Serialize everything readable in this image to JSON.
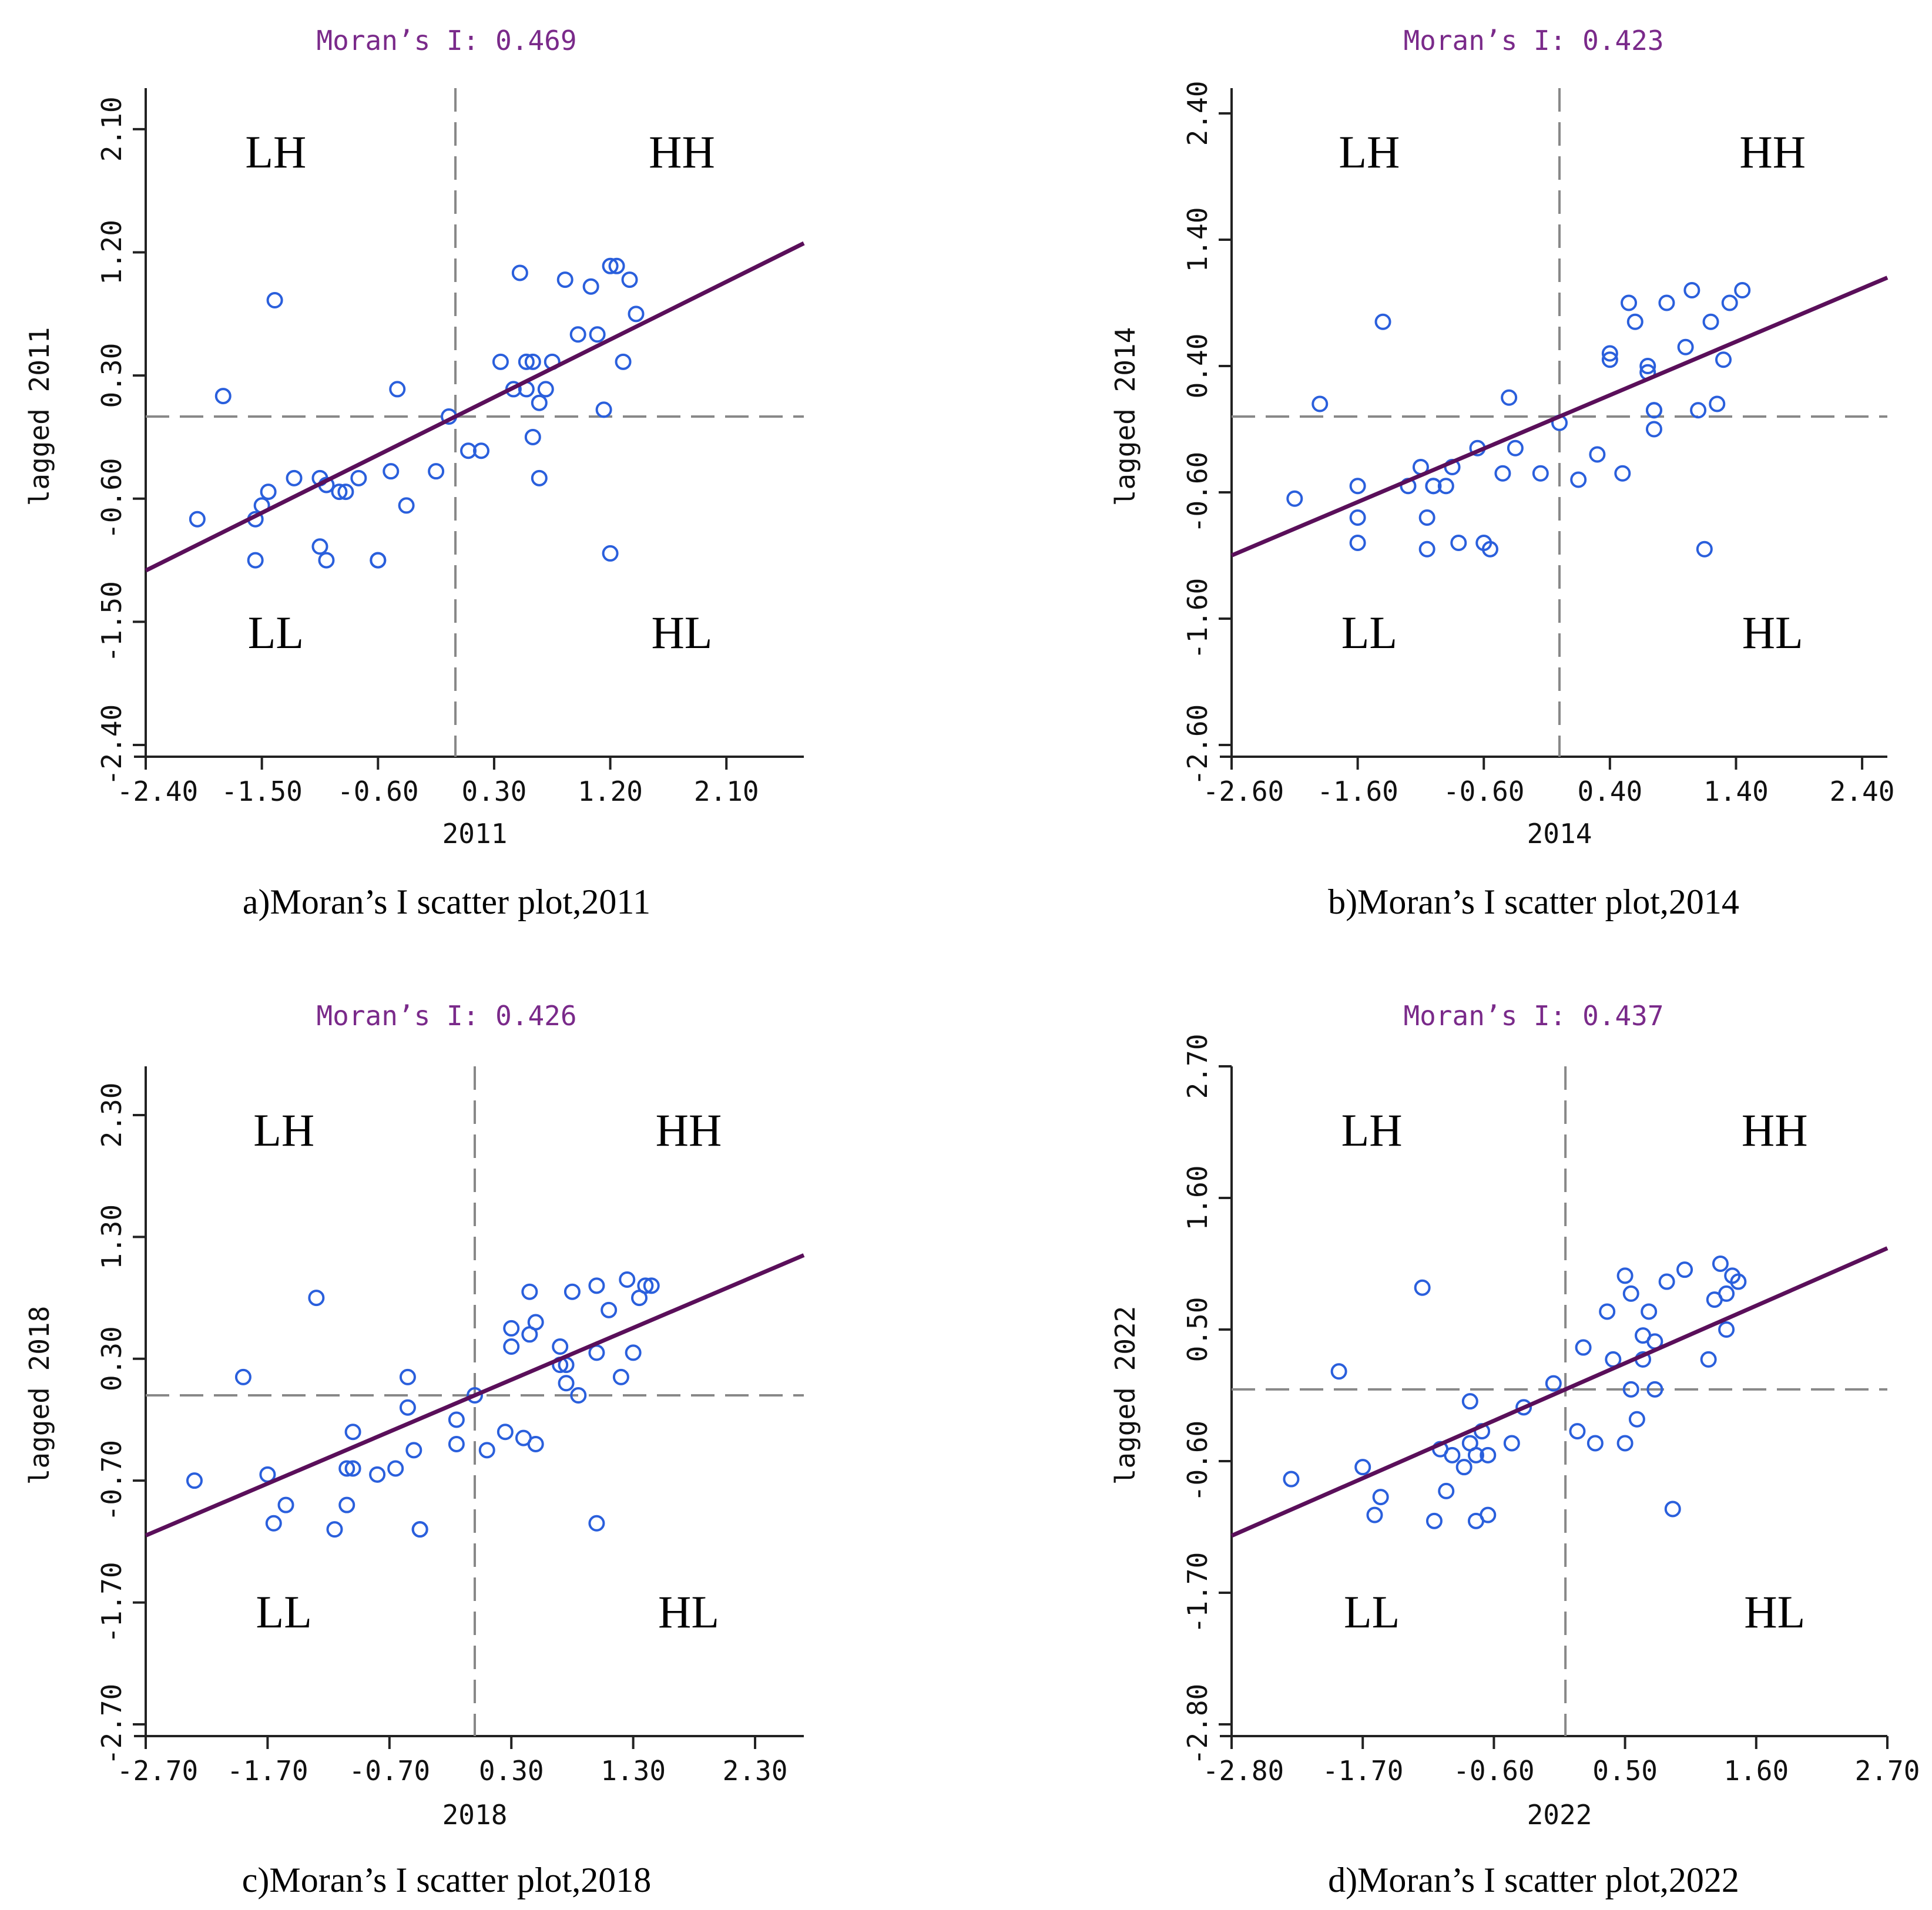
{
  "colors": {
    "regression": "#5a0f5a",
    "points": "#2a5fdc",
    "axes": "#222222",
    "reference": "#888888",
    "moran_title": "#7a2a8a"
  },
  "chart_data": [
    {
      "type": "scatter",
      "title": "Moran’s I: 0.469",
      "xlabel": "2011",
      "ylabel": "lagged 2011",
      "caption": "a)Moran’s I scatter plot,2011",
      "xlim": [
        -2.4,
        2.7
      ],
      "ylim": [
        -2.4,
        2.4
      ],
      "xticks": [
        -2.4,
        -1.5,
        -0.6,
        0.3,
        1.2,
        2.1
      ],
      "xtick_labels": [
        "-2.40",
        "-1.50",
        "-0.60",
        "0.30",
        "1.20",
        "2.10"
      ],
      "yticks": [
        -2.4,
        -1.5,
        -0.6,
        0.3,
        1.2,
        2.1
      ],
      "ytick_labels": [
        "-2.40",
        "-1.50",
        "-0.60",
        "0.30",
        "1.20",
        "2.10"
      ],
      "quadrants": [
        "LH",
        "HH",
        "LL",
        "HL"
      ],
      "moran_i": 0.469,
      "regression_slope": 0.469,
      "x": [
        -2.0,
        -1.55,
        -1.55,
        -1.5,
        -1.45,
        -1.4,
        -1.25,
        -1.05,
        -1.05,
        -1.0,
        -1.0,
        -0.9,
        -0.85,
        -0.75,
        -0.6,
        -0.6,
        -0.5,
        -0.45,
        -0.38,
        -0.15,
        -0.05,
        0.1,
        0.2,
        0.35,
        0.45,
        0.5,
        0.55,
        0.55,
        0.6,
        0.6,
        0.65,
        0.65,
        0.7,
        0.75,
        0.85,
        0.95,
        1.05,
        1.1,
        1.15,
        1.2,
        1.2,
        1.25,
        1.3,
        1.35,
        1.4,
        -1.8
      ],
      "y": [
        -0.75,
        -0.75,
        -1.05,
        -0.65,
        -0.55,
        0.85,
        -0.45,
        -0.45,
        -0.95,
        -1.05,
        -0.5,
        -0.55,
        -0.55,
        -0.45,
        -1.05,
        -1.05,
        -0.4,
        0.2,
        -0.65,
        -0.4,
        0.0,
        -0.25,
        -0.25,
        0.4,
        0.2,
        1.05,
        0.2,
        0.4,
        -0.15,
        0.4,
        0.1,
        -0.45,
        0.2,
        0.4,
        1.0,
        0.6,
        0.95,
        0.6,
        0.05,
        1.1,
        -1.0,
        1.1,
        0.4,
        1.0,
        0.75,
        0.15
      ],
      "points_extra": []
    },
    {
      "type": "scatter",
      "title": "Moran’s I: 0.423",
      "xlabel": "2014",
      "ylabel": "lagged 2014",
      "caption": "b)Moran’s I scatter plot,2014",
      "xlim": [
        -2.6,
        2.6
      ],
      "ylim": [
        -2.6,
        2.6
      ],
      "xticks": [
        -2.6,
        -1.6,
        -0.6,
        0.4,
        1.4,
        2.4
      ],
      "xtick_labels": [
        "-2.60",
        "-1.60",
        "-0.60",
        "0.40",
        "1.40",
        "2.40"
      ],
      "yticks": [
        -2.6,
        -1.6,
        -0.6,
        0.4,
        1.4,
        2.4
      ],
      "ytick_labels": [
        "-2.60",
        "-1.60",
        "-0.60",
        "0.40",
        "1.40",
        "2.40"
      ],
      "quadrants": [
        "LH",
        "HH",
        "LL",
        "HL"
      ],
      "moran_i": 0.423,
      "regression_slope": 0.423,
      "x": [
        -2.1,
        -1.9,
        -1.6,
        -1.6,
        -1.6,
        -1.4,
        -1.2,
        -1.1,
        -1.05,
        -1.05,
        -1.0,
        -1.0,
        -0.9,
        -0.85,
        -0.8,
        -0.65,
        -0.6,
        -0.55,
        -0.45,
        -0.4,
        -0.35,
        -0.15,
        0.0,
        0.15,
        0.3,
        0.4,
        0.4,
        0.5,
        0.55,
        0.6,
        0.7,
        0.7,
        0.75,
        0.75,
        0.75,
        0.85,
        1.0,
        1.05,
        1.1,
        1.15,
        1.2,
        1.25,
        1.3,
        1.35,
        1.45
      ],
      "y": [
        -0.65,
        0.1,
        -0.55,
        -0.8,
        -1.0,
        0.75,
        -0.55,
        -0.4,
        -0.8,
        -1.05,
        -0.55,
        -0.55,
        -0.55,
        -0.4,
        -1.0,
        -0.25,
        -1.0,
        -1.05,
        -0.45,
        0.15,
        -0.25,
        -0.45,
        -0.05,
        -0.5,
        -0.3,
        0.45,
        0.5,
        -0.45,
        0.9,
        0.75,
        0.35,
        0.4,
        0.05,
        0.05,
        -0.1,
        0.9,
        0.55,
        1.0,
        0.05,
        -1.05,
        0.75,
        0.1,
        0.45,
        0.9,
        1.0
      ],
      "points_extra": []
    },
    {
      "type": "scatter",
      "title": "Moran’s I: 0.426",
      "xlabel": "2018",
      "ylabel": "lagged 2018",
      "caption": "c)Moran’s I scatter plot,2018",
      "xlim": [
        -2.7,
        2.7
      ],
      "ylim": [
        -2.7,
        2.7
      ],
      "xticks": [
        -2.7,
        -1.7,
        -0.7,
        0.3,
        1.3,
        2.3
      ],
      "xtick_labels": [
        "-2.70",
        "-1.70",
        "-0.70",
        "0.30",
        "1.30",
        "2.30"
      ],
      "yticks": [
        -2.7,
        -1.7,
        -0.7,
        0.3,
        1.3,
        2.3
      ],
      "ytick_labels": [
        "-2.70",
        "-1.70",
        "-0.70",
        "0.30",
        "1.30",
        "2.30"
      ],
      "quadrants": [
        "LH",
        "HH",
        "LL",
        "HL"
      ],
      "moran_i": 0.426,
      "regression_slope": 0.426,
      "x": [
        -2.3,
        -1.9,
        -1.7,
        -1.65,
        -1.55,
        -1.3,
        -1.15,
        -1.05,
        -1.05,
        -1.0,
        -1.0,
        -0.8,
        -0.65,
        -0.55,
        -0.55,
        -0.5,
        -0.45,
        -0.45,
        -0.15,
        -0.15,
        0.0,
        0.1,
        0.25,
        0.3,
        0.3,
        0.4,
        0.45,
        0.45,
        0.5,
        0.5,
        0.7,
        0.7,
        0.75,
        0.75,
        0.8,
        0.85,
        1.0,
        1.0,
        1.0,
        1.1,
        1.2,
        1.25,
        1.3,
        1.35,
        1.4,
        1.45
      ],
      "y": [
        -0.7,
        0.15,
        -0.65,
        -1.05,
        -0.9,
        0.8,
        -1.1,
        -0.6,
        -0.9,
        -0.6,
        -0.3,
        -0.65,
        -0.6,
        0.15,
        -0.1,
        -0.45,
        -1.1,
        -1.1,
        -0.2,
        -0.4,
        0.0,
        -0.45,
        -0.3,
        0.55,
        0.4,
        -0.35,
        0.85,
        0.5,
        -0.4,
        0.6,
        0.4,
        0.25,
        0.25,
        0.1,
        0.85,
        0.0,
        -1.05,
        0.35,
        0.9,
        0.7,
        0.15,
        0.95,
        0.35,
        0.8,
        0.9,
        0.9
      ],
      "points_extra": []
    },
    {
      "type": "scatter",
      "title": "Moran’s I: 0.437",
      "xlabel": "2022",
      "ylabel": "lagged 2022",
      "caption": "d)Moran’s I scatter plot,2022",
      "xlim": [
        -2.8,
        2.7
      ],
      "ylim": [
        -2.8,
        2.7
      ],
      "xticks": [
        -2.8,
        -1.7,
        -0.6,
        0.5,
        1.6,
        2.7
      ],
      "xtick_labels": [
        "-2.80",
        "-1.70",
        "-0.60",
        "0.50",
        "1.60",
        "2.70"
      ],
      "yticks": [
        -2.8,
        -1.7,
        -0.6,
        0.5,
        1.6,
        2.7
      ],
      "ytick_labels": [
        "-2.80",
        "-1.70",
        "-0.60",
        "0.50",
        "1.60",
        "2.70"
      ],
      "quadrants": [
        "LH",
        "HH",
        "LL",
        "HL"
      ],
      "moran_i": 0.437,
      "regression_slope": 0.437,
      "x": [
        -2.3,
        -1.9,
        -1.7,
        -1.6,
        -1.55,
        -1.2,
        -1.1,
        -1.05,
        -1.0,
        -0.95,
        -0.85,
        -0.8,
        -0.8,
        -0.75,
        -0.75,
        -0.7,
        -0.65,
        -0.65,
        -0.45,
        -0.35,
        -0.1,
        0.1,
        0.15,
        0.25,
        0.35,
        0.4,
        0.55,
        0.5,
        0.5,
        0.55,
        0.6,
        0.65,
        0.65,
        0.7,
        0.75,
        0.75,
        0.85,
        0.9,
        1.0,
        1.2,
        1.25,
        1.3,
        1.35,
        1.35,
        1.4,
        1.45
      ],
      "y": [
        -0.75,
        0.15,
        -0.65,
        -1.05,
        -0.9,
        0.85,
        -1.1,
        -0.5,
        -0.85,
        -0.55,
        -0.65,
        -0.45,
        -0.1,
        -0.55,
        -1.1,
        -0.35,
        -0.55,
        -1.05,
        -0.45,
        -0.15,
        0.05,
        -0.35,
        0.35,
        -0.45,
        0.65,
        0.25,
        0.0,
        -0.45,
        0.95,
        0.8,
        -0.25,
        0.45,
        0.25,
        0.65,
        0.4,
        0.0,
        0.9,
        -1.0,
        1.0,
        0.25,
        0.75,
        1.05,
        0.5,
        0.8,
        0.95,
        0.9
      ],
      "points_extra": []
    }
  ]
}
